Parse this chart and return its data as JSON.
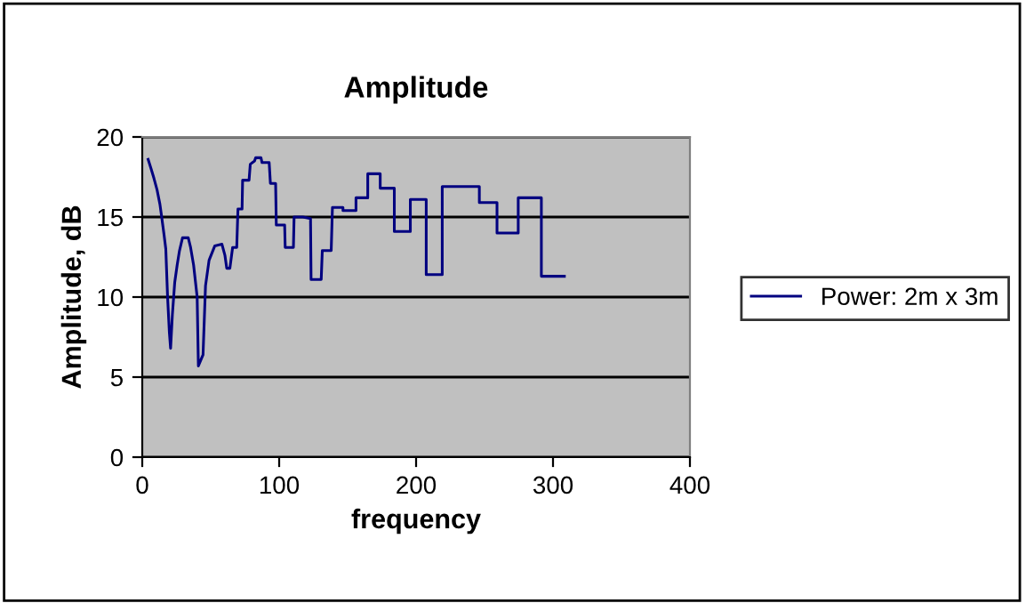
{
  "chart_data": {
    "type": "line",
    "title": "Amplitude",
    "xlabel": "frequency",
    "ylabel": "Amplitude, dB",
    "xlim": [
      0,
      400
    ],
    "xticks": [
      0,
      100,
      200,
      300,
      400
    ],
    "ylim": [
      0,
      20
    ],
    "yticks": [
      0,
      5,
      10,
      15,
      20
    ],
    "grid": "y",
    "legend": "right",
    "marker": "none",
    "line_style": "solid",
    "series": [
      {
        "name": "Power: 2m x 3m",
        "color": "#000080",
        "x": [
          4.3,
          6.5,
          8.6,
          10.8,
          12.9,
          14.2,
          15.9,
          17.2,
          18.5,
          19.8,
          20.7,
          22,
          23.7,
          25.5,
          27.2,
          29.4,
          33.6,
          35.3,
          37.5,
          40.1,
          41,
          44.4,
          46.2,
          48.8,
          53,
          58.2,
          60.4,
          61.7,
          64,
          66,
          69,
          69.9,
          72.9,
          73.3,
          78,
          78.9,
          82,
          82.8,
          86.7,
          87.5,
          92.7,
          93.6,
          97.4,
          97.9,
          104,
          104.4,
          110.4,
          110.9,
          117.3,
          122.9,
          123.3,
          130.7,
          131.5,
          138,
          138.9,
          146.6,
          146.6,
          156.1,
          156.1,
          164.7,
          164.7,
          173.8,
          173.8,
          184.1,
          184.1,
          195.8,
          195.8,
          207.4,
          207.4,
          219.1,
          219.1,
          246.2,
          246.2,
          259.1,
          259.1,
          274.6,
          274.6,
          291.5,
          291.5,
          308.3
        ],
        "values": [
          18.6,
          18.0,
          17.4,
          16.7,
          15.8,
          15.0,
          13.9,
          13.0,
          10.0,
          7.8,
          6.8,
          8.9,
          10.9,
          12.0,
          12.9,
          13.7,
          13.7,
          13.1,
          12.0,
          10.0,
          5.7,
          6.4,
          10.7,
          12.3,
          13.2,
          13.3,
          12.6,
          11.8,
          11.8,
          13.1,
          13.1,
          15.5,
          15.5,
          17.3,
          17.3,
          18.3,
          18.5,
          18.7,
          18.7,
          18.4,
          18.4,
          17.1,
          17.1,
          14.5,
          14.5,
          13.1,
          13.1,
          15.0,
          15.0,
          14.9,
          11.1,
          11.1,
          12.9,
          12.9,
          15.6,
          15.6,
          15.4,
          15.4,
          16.2,
          16.2,
          17.7,
          17.7,
          16.8,
          16.8,
          14.1,
          14.1,
          16.1,
          16.1,
          11.4,
          11.4,
          16.9,
          16.9,
          15.9,
          15.9,
          14.0,
          14.0,
          16.2,
          16.2,
          11.3,
          11.3
        ]
      }
    ]
  }
}
